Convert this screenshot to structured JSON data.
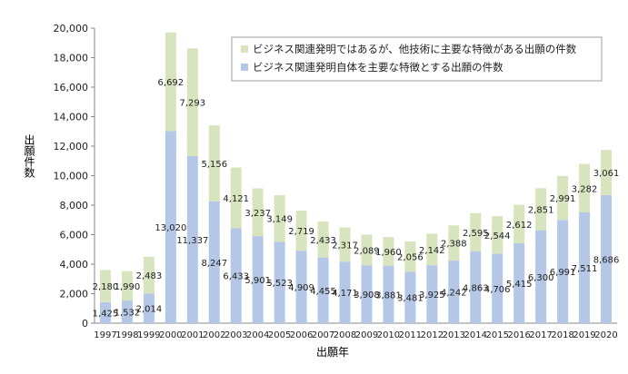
{
  "chart_data": {
    "type": "bar",
    "stacked": true,
    "title": "",
    "xlabel": "出願年",
    "ylabel": "出願件数",
    "ylim": [
      0,
      20000
    ],
    "yticks": [
      0,
      2000,
      4000,
      6000,
      8000,
      10000,
      12000,
      14000,
      16000,
      18000,
      20000
    ],
    "ytick_labels": [
      "0",
      "2,000",
      "4,000",
      "6,000",
      "8,000",
      "10,000",
      "12,000",
      "14,000",
      "16,000",
      "18,000",
      "20,000"
    ],
    "grid": false,
    "legend_position": "top-right",
    "categories": [
      "1997",
      "1998",
      "1999",
      "2000",
      "2001",
      "2002",
      "2003",
      "2004",
      "2005",
      "2006",
      "2007",
      "2008",
      "2009",
      "2010",
      "2011",
      "2012",
      "2013",
      "2014",
      "2015",
      "2016",
      "2017",
      "2018",
      "2019",
      "2020"
    ],
    "series": [
      {
        "name": "ビジネス関連発明自体を主要な特徴とする出願の件数",
        "color": "#b4c7e7",
        "values": [
          1425,
          1532,
          2014,
          13020,
          11337,
          8247,
          6433,
          5901,
          5523,
          4909,
          4455,
          4171,
          3908,
          3881,
          3481,
          3925,
          4242,
          4863,
          4706,
          5415,
          6300,
          6991,
          7511,
          8686
        ],
        "labels": [
          "1,425",
          "1,532",
          "2,014",
          "13,020",
          "11,337",
          "8,247",
          "6,433",
          "5,901",
          "5,523",
          "4,909",
          "4,455",
          "4,171",
          "3,908",
          "3,881",
          "3,481",
          "3,925",
          "4,242",
          "4,863",
          "4,706",
          "5,415",
          "6,300",
          "6,991",
          "7,511",
          "8,686"
        ]
      },
      {
        "name": "ビジネス関連発明ではあるが、他技術に主要な特徴がある出願の件数",
        "color": "#d7e4bd",
        "values": [
          2180,
          1990,
          2483,
          6692,
          7293,
          5156,
          4121,
          3237,
          3149,
          2719,
          2433,
          2317,
          2089,
          1960,
          2056,
          2142,
          2388,
          2595,
          2544,
          2612,
          2851,
          2991,
          3282,
          3061
        ],
        "labels": [
          "2,180",
          "1,990",
          "2,483",
          "6,692",
          "7,293",
          "5,156",
          "4,121",
          "3,237",
          "3,149",
          "2,719",
          "2,433",
          "2,317",
          "2,089",
          "1,960",
          "2,056",
          "2,142",
          "2,388",
          "2,595",
          "2,544",
          "2,612",
          "2,851",
          "2,991",
          "3,282",
          "3,061"
        ]
      }
    ]
  }
}
